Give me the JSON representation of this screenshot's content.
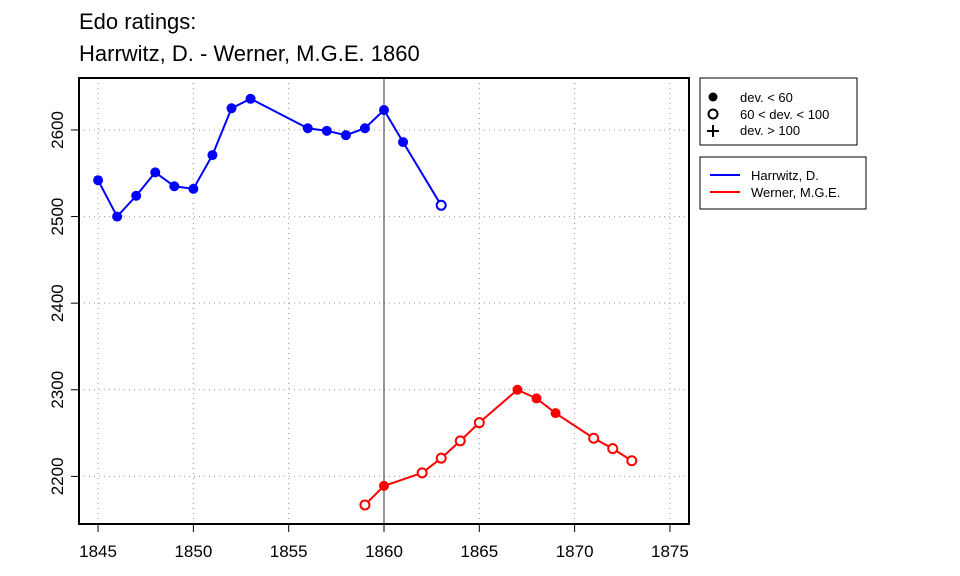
{
  "chart_data": {
    "type": "line",
    "title": "Edo ratings:",
    "subtitle": "Harrwitz, D. - Werner, M.G.E. 1860",
    "xlim": [
      1844,
      1876
    ],
    "ylim": [
      2145,
      2660
    ],
    "x_ticks": [
      1845,
      1850,
      1855,
      1860,
      1865,
      1870,
      1875
    ],
    "y_ticks": [
      2200,
      2300,
      2400,
      2500,
      2600
    ],
    "reference_line_x": 1860,
    "grid": true,
    "marker_legend": {
      "placement": "top-right",
      "entries": [
        {
          "symbol": "filled-circle",
          "label": "dev. < 60"
        },
        {
          "symbol": "open-circle",
          "label": "60 < dev. < 100"
        },
        {
          "symbol": "plus",
          "label": "dev. > 100"
        }
      ]
    },
    "series": [
      {
        "name": "Harrwitz, D.",
        "color": "#0000ff",
        "points": [
          {
            "x": 1845,
            "y": 2542,
            "marker": "filled"
          },
          {
            "x": 1846,
            "y": 2500,
            "marker": "filled"
          },
          {
            "x": 1847,
            "y": 2524,
            "marker": "filled"
          },
          {
            "x": 1848,
            "y": 2551,
            "marker": "filled"
          },
          {
            "x": 1849,
            "y": 2535,
            "marker": "filled"
          },
          {
            "x": 1850,
            "y": 2532,
            "marker": "filled"
          },
          {
            "x": 1851,
            "y": 2571,
            "marker": "filled"
          },
          {
            "x": 1852,
            "y": 2625,
            "marker": "filled"
          },
          {
            "x": 1853,
            "y": 2636,
            "marker": "filled"
          },
          {
            "x": 1856,
            "y": 2602,
            "marker": "filled"
          },
          {
            "x": 1857,
            "y": 2599,
            "marker": "filled"
          },
          {
            "x": 1858,
            "y": 2594,
            "marker": "filled"
          },
          {
            "x": 1859,
            "y": 2602,
            "marker": "filled"
          },
          {
            "x": 1860,
            "y": 2623,
            "marker": "filled"
          },
          {
            "x": 1861,
            "y": 2586,
            "marker": "filled"
          },
          {
            "x": 1863,
            "y": 2513,
            "marker": "open"
          }
        ]
      },
      {
        "name": "Werner, M.G.E.",
        "color": "#ff0000",
        "points": [
          {
            "x": 1859,
            "y": 2167,
            "marker": "open"
          },
          {
            "x": 1860,
            "y": 2189,
            "marker": "filled"
          },
          {
            "x": 1862,
            "y": 2204,
            "marker": "open"
          },
          {
            "x": 1863,
            "y": 2221,
            "marker": "open"
          },
          {
            "x": 1864,
            "y": 2241,
            "marker": "open"
          },
          {
            "x": 1865,
            "y": 2262,
            "marker": "open"
          },
          {
            "x": 1867,
            "y": 2300,
            "marker": "filled"
          },
          {
            "x": 1868,
            "y": 2290,
            "marker": "filled"
          },
          {
            "x": 1869,
            "y": 2273,
            "marker": "filled"
          },
          {
            "x": 1871,
            "y": 2244,
            "marker": "open"
          },
          {
            "x": 1872,
            "y": 2232,
            "marker": "open"
          },
          {
            "x": 1873,
            "y": 2218,
            "marker": "open"
          }
        ]
      }
    ]
  }
}
